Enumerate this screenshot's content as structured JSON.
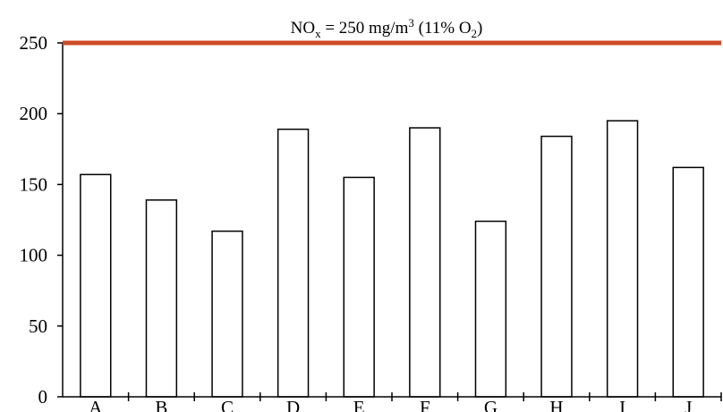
{
  "chart_data": {
    "type": "bar",
    "categories": [
      "A",
      "B",
      "C",
      "D",
      "E",
      "F",
      "G",
      "H",
      "I",
      "J"
    ],
    "values": [
      157,
      139,
      117,
      189,
      155,
      190,
      124,
      184,
      195,
      162
    ],
    "title": "",
    "xlabel": "",
    "ylabel": "",
    "ylim": [
      0,
      250
    ],
    "yticks": [
      "0",
      "50",
      "100",
      "150",
      "200",
      "250"
    ],
    "grid": false,
    "bar_fill": "#ffffff",
    "bar_stroke": "#000000",
    "limit_line": {
      "value": 250,
      "color": "#d04a26",
      "label_parts": [
        "NO",
        "x",
        " = 250 mg/m",
        "3",
        " (11% O",
        "2",
        ")"
      ]
    }
  }
}
